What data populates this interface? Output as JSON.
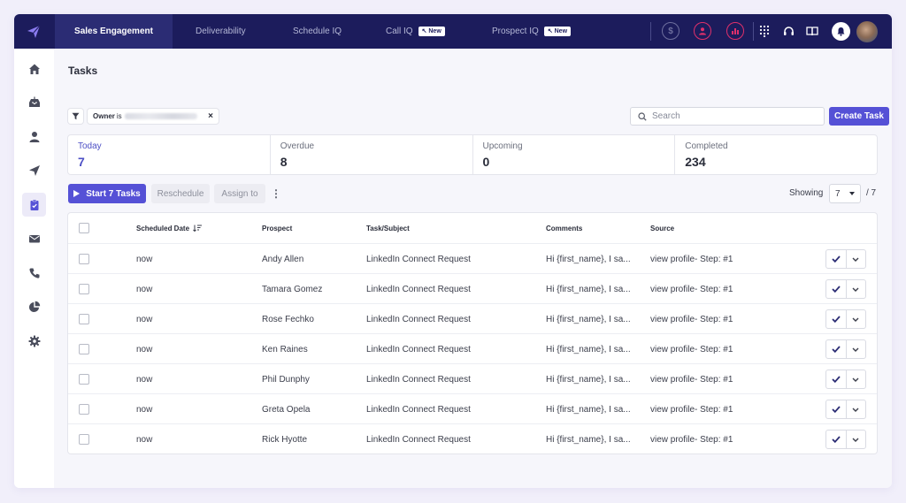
{
  "topbar": {
    "logo_icon": "paper-plane-logo-icon",
    "tabs": [
      {
        "label": "Sales Engagement",
        "active": true
      },
      {
        "label": "Deliverability"
      },
      {
        "label": "Schedule IQ"
      },
      {
        "label": "Call IQ",
        "badge": "New"
      },
      {
        "label": "Prospect IQ",
        "badge": "New"
      }
    ],
    "icons": [
      "dollar-icon",
      "user-circle-icon",
      "chart-icon",
      "dialpad-icon",
      "headset-icon",
      "book-icon",
      "bell-icon"
    ],
    "accent_red": "#e0306b"
  },
  "sidebar": {
    "items": [
      {
        "icon": "home-icon"
      },
      {
        "icon": "inbox-icon"
      },
      {
        "icon": "person-icon"
      },
      {
        "icon": "send-icon"
      },
      {
        "icon": "tasks-clipboard-icon",
        "active": true
      },
      {
        "icon": "mail-icon"
      },
      {
        "icon": "phone-icon"
      },
      {
        "icon": "pie-chart-icon"
      },
      {
        "icon": "settings-icon"
      }
    ]
  },
  "page": {
    "title": "Tasks"
  },
  "filter": {
    "label": "Owner",
    "op": "is"
  },
  "search": {
    "placeholder": "Search"
  },
  "actions": {
    "create_task": "Create Task",
    "start": "Start 7 Tasks",
    "reschedule": "Reschedule",
    "assign": "Assign to",
    "more": "⋮",
    "showing_label": "Showing",
    "page_size": "7",
    "total": "/ 7"
  },
  "stats": [
    {
      "label": "Today",
      "value": "7"
    },
    {
      "label": "Overdue",
      "value": "8"
    },
    {
      "label": "Upcoming",
      "value": "0"
    },
    {
      "label": "Completed",
      "value": "234"
    }
  ],
  "table": {
    "columns": [
      "Scheduled Date",
      "Prospect",
      "Task/Subject",
      "Comments",
      "Source"
    ],
    "rows": [
      {
        "date": "now",
        "prospect": "Andy Allen",
        "task": "LinkedIn Connect Request",
        "comments": "Hi {first_name}, I sa...",
        "source": "view profile- Step: #1"
      },
      {
        "date": "now",
        "prospect": "Tamara Gomez",
        "task": "LinkedIn Connect Request",
        "comments": "Hi {first_name}, I sa...",
        "source": "view profile- Step: #1"
      },
      {
        "date": "now",
        "prospect": "Rose Fechko",
        "task": "LinkedIn Connect Request",
        "comments": "Hi {first_name}, I sa...",
        "source": "view profile- Step: #1"
      },
      {
        "date": "now",
        "prospect": "Ken Raines",
        "task": "LinkedIn Connect Request",
        "comments": "Hi {first_name}, I sa...",
        "source": "view profile- Step: #1"
      },
      {
        "date": "now",
        "prospect": "Phil Dunphy",
        "task": "LinkedIn Connect Request",
        "comments": "Hi {first_name}, I sa...",
        "source": "view profile- Step: #1"
      },
      {
        "date": "now",
        "prospect": "Greta Opela",
        "task": "LinkedIn Connect Request",
        "comments": "Hi {first_name}, I sa...",
        "source": "view profile- Step: #1"
      },
      {
        "date": "now",
        "prospect": "Rick Hyotte",
        "task": "LinkedIn Connect Request",
        "comments": "Hi {first_name}, I sa...",
        "source": "view profile- Step: #1"
      }
    ]
  },
  "colors": {
    "primary": "#5551d6",
    "nav_bg": "#1c1c5c",
    "active_stat": "#4c4fc5"
  }
}
